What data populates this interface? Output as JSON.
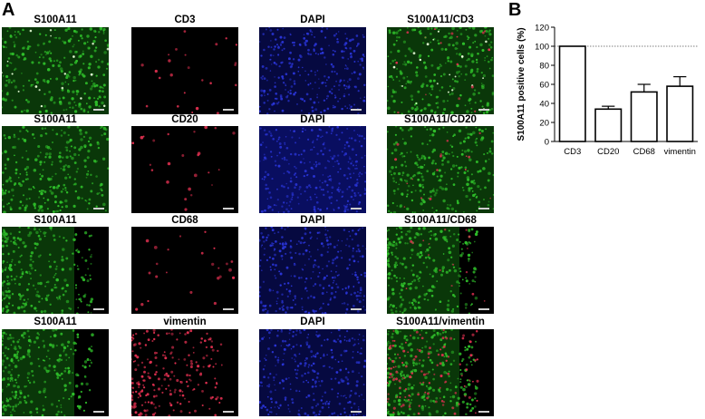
{
  "panel_labels": {
    "a": "A",
    "b": "B"
  },
  "panel_a": {
    "rows": [
      {
        "labels": [
          "S100A11",
          "CD3",
          "DAPI",
          "S100A11/CD3"
        ]
      },
      {
        "labels": [
          "S100A11",
          "CD20",
          "DAPI",
          "S100A11/CD20"
        ]
      },
      {
        "labels": [
          "S100A11",
          "CD68",
          "DAPI",
          "S100A11/CD68"
        ]
      },
      {
        "labels": [
          "S100A11",
          "vimentin",
          "DAPI",
          "S100A11/vimentin"
        ]
      }
    ],
    "colors": {
      "green": "#2fbf2a",
      "red": "#e03050",
      "blue": "#2a35d8",
      "background": "#000000"
    }
  },
  "chart_data": {
    "type": "bar",
    "categories": [
      "CD3",
      "CD20",
      "CD68",
      "vimentin"
    ],
    "values": [
      100,
      34,
      52,
      58
    ],
    "errors": [
      0,
      3,
      8,
      10
    ],
    "ylabel": "S100A11 positive cells (%)",
    "ylim": [
      0,
      120
    ],
    "yticks": [
      0,
      20,
      40,
      60,
      80,
      100,
      120
    ],
    "reference_line": 100,
    "bar_fill": "#ffffff",
    "bar_edge": "#000000"
  }
}
